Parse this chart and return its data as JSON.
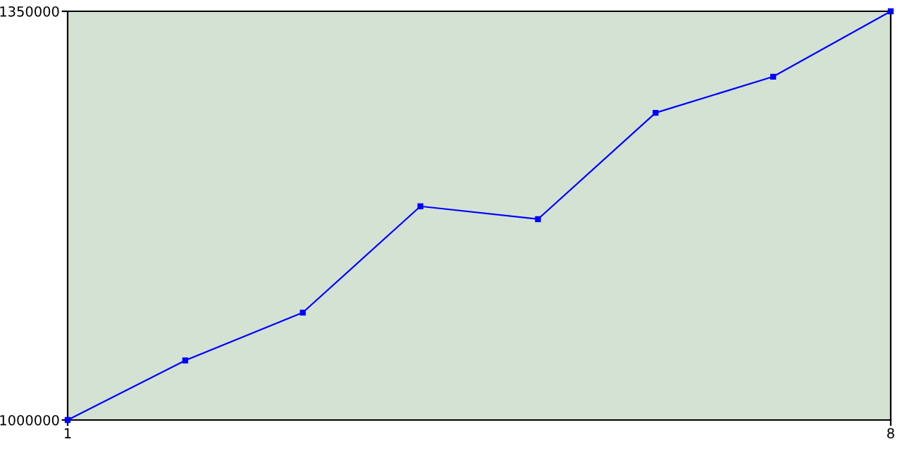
{
  "chart_data": {
    "type": "line",
    "x": [
      1,
      2,
      3,
      4,
      5,
      6,
      7,
      8
    ],
    "series": [
      {
        "color": "#0000ff",
        "values": [
          1000000,
          1051000,
          1092000,
          1183000,
          1172000,
          1263000,
          1294000,
          1350000
        ]
      }
    ],
    "xlim": [
      1,
      8
    ],
    "xticks": [
      1,
      8
    ],
    "ylim": [
      1000000,
      1350000
    ],
    "yticks": [
      1000000,
      1350000
    ],
    "grid": false,
    "legend": false,
    "marker": "square",
    "line_style": "solid"
  }
}
